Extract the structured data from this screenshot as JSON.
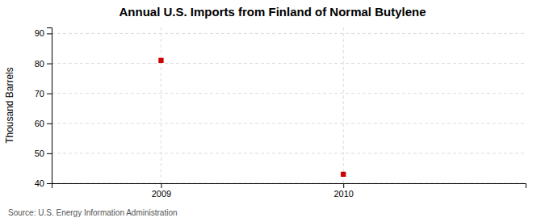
{
  "chart_data": {
    "type": "scatter",
    "title": "Annual U.S. Imports from Finland of Normal Butylene",
    "ylabel": "Thousand Barrels",
    "annotation": "Source: U.S. Energy Information Administration",
    "x": [
      2009,
      2010
    ],
    "values": [
      81,
      43
    ],
    "color": "#cc0000",
    "marker": "square",
    "xlim": [
      2008.4,
      2011.0
    ],
    "ylim": [
      40,
      92
    ],
    "xticks": [
      2009,
      2010
    ],
    "yticks": [
      40,
      50,
      60,
      70,
      80,
      90
    ],
    "grid": true
  }
}
